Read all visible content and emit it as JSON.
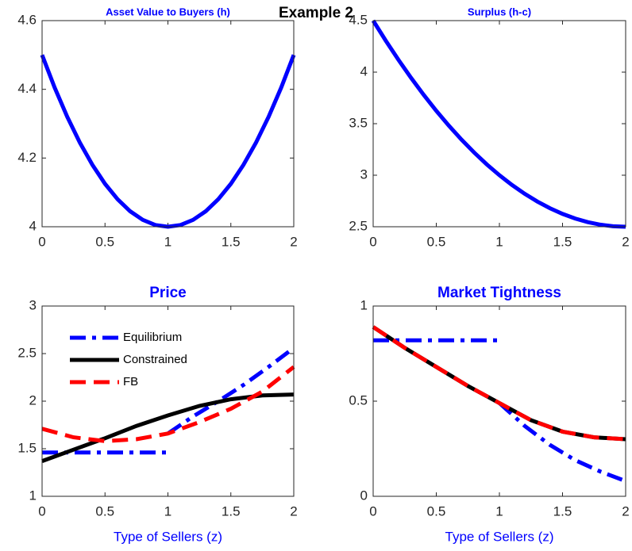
{
  "suptitle": "Example 2",
  "chart_data": [
    {
      "type": "line",
      "title": "Asset Value to Buyers (h)",
      "color": "#0000ff",
      "style": "solid",
      "x": [
        0,
        0.1,
        0.2,
        0.3,
        0.4,
        0.5,
        0.6,
        0.7,
        0.8,
        0.9,
        1,
        1.1,
        1.2,
        1.3,
        1.4,
        1.5,
        1.6,
        1.7,
        1.8,
        1.9,
        2
      ],
      "values": [
        4.5,
        4.405,
        4.32,
        4.245,
        4.18,
        4.125,
        4.08,
        4.045,
        4.02,
        4.005,
        4,
        4.005,
        4.02,
        4.045,
        4.08,
        4.125,
        4.18,
        4.245,
        4.32,
        4.405,
        4.5
      ],
      "xlim": [
        0,
        2
      ],
      "xticks": [
        0,
        0.5,
        1,
        1.5,
        2
      ],
      "ylim": [
        4,
        4.6
      ],
      "yticks": [
        4,
        4.2,
        4.4,
        4.6
      ]
    },
    {
      "type": "line",
      "title": "Surplus (h-c)",
      "color": "#0000ff",
      "style": "solid",
      "x": [
        0,
        0.1,
        0.2,
        0.3,
        0.4,
        0.5,
        0.6,
        0.7,
        0.8,
        0.9,
        1,
        1.1,
        1.2,
        1.3,
        1.4,
        1.5,
        1.6,
        1.7,
        1.8,
        1.9,
        2
      ],
      "values": [
        4.5,
        4.305,
        4.12,
        3.945,
        3.78,
        3.625,
        3.48,
        3.345,
        3.22,
        3.105,
        3,
        2.905,
        2.82,
        2.745,
        2.68,
        2.625,
        2.58,
        2.545,
        2.52,
        2.505,
        2.5
      ],
      "xlim": [
        0,
        2
      ],
      "xticks": [
        0,
        0.5,
        1,
        1.5,
        2
      ],
      "ylim": [
        2.5,
        4.5
      ],
      "yticks": [
        2.5,
        3,
        3.5,
        4,
        4.5
      ]
    },
    {
      "type": "line",
      "title": "Price",
      "xlabel": "Type of Sellers (z)",
      "legend": "northwest",
      "series": [
        {
          "name": "Equilibrium",
          "color": "#0000ff",
          "style": "dashdot",
          "x": [
            0,
            0.5,
            1,
            1,
            1,
            1.2,
            1.4,
            1.6,
            1.8,
            2
          ],
          "values": [
            1.46,
            1.46,
            1.46,
            null,
            1.66,
            1.84,
            2.0,
            2.17,
            2.36,
            2.56
          ]
        },
        {
          "name": "Constrained",
          "color": "#000000",
          "style": "solid",
          "x": [
            0,
            0.25,
            0.5,
            0.75,
            1,
            1.25,
            1.5,
            1.75,
            2
          ],
          "values": [
            1.37,
            1.49,
            1.61,
            1.74,
            1.85,
            1.95,
            2.02,
            2.06,
            2.07
          ]
        },
        {
          "name": "FB",
          "color": "#ff0000",
          "style": "dashed",
          "x": [
            0,
            0.25,
            0.5,
            0.75,
            1,
            1.25,
            1.5,
            1.75,
            2
          ],
          "values": [
            1.71,
            1.62,
            1.58,
            1.6,
            1.66,
            1.78,
            1.92,
            2.1,
            2.36
          ]
        }
      ],
      "xlim": [
        0,
        2
      ],
      "xticks": [
        0,
        0.5,
        1,
        1.5,
        2
      ],
      "ylim": [
        1,
        3
      ],
      "yticks": [
        1,
        1.5,
        2,
        2.5,
        3
      ]
    },
    {
      "type": "line",
      "title": "Market Tightness",
      "xlabel": "Type of Sellers (z)",
      "series": [
        {
          "name": "Equilibrium",
          "color": "#0000ff",
          "style": "dashdot",
          "x": [
            0,
            0.5,
            1,
            1,
            1,
            1.2,
            1.4,
            1.6,
            1.8,
            2
          ],
          "values": [
            0.82,
            0.82,
            0.82,
            null,
            0.49,
            0.37,
            0.27,
            0.19,
            0.13,
            0.08
          ]
        },
        {
          "name": "Constrained",
          "color": "#000000",
          "style": "solid",
          "x": [
            0,
            0.25,
            0.5,
            0.75,
            1,
            1.25,
            1.5,
            1.75,
            2
          ],
          "values": [
            0.89,
            0.78,
            0.68,
            0.58,
            0.49,
            0.4,
            0.34,
            0.31,
            0.3
          ]
        },
        {
          "name": "FB",
          "color": "#ff0000",
          "style": "dashed",
          "x": [
            0,
            0.25,
            0.5,
            0.75,
            1,
            1.25,
            1.5,
            1.75,
            2
          ],
          "values": [
            0.89,
            0.78,
            0.68,
            0.58,
            0.49,
            0.4,
            0.34,
            0.31,
            0.3
          ]
        }
      ],
      "xlim": [
        0,
        2
      ],
      "xticks": [
        0,
        0.5,
        1,
        1.5,
        2
      ],
      "ylim": [
        0,
        1
      ],
      "yticks": [
        0,
        0.5,
        1
      ]
    }
  ]
}
